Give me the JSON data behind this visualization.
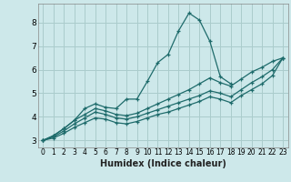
{
  "xlabel": "Humidex (Indice chaleur)",
  "bg_color": "#cde8ea",
  "grid_color": "#aacccc",
  "line_color": "#1e6b6b",
  "xlim": [
    -0.5,
    23.5
  ],
  "ylim": [
    2.7,
    8.8
  ],
  "yticks": [
    3,
    4,
    5,
    6,
    7,
    8
  ],
  "xtick_labels": [
    "0",
    "1",
    "2",
    "3",
    "4",
    "5",
    "6",
    "7",
    "8",
    "9",
    "10",
    "11",
    "12",
    "13",
    "14",
    "15",
    "16",
    "17",
    "18",
    "19",
    "20",
    "21",
    "22",
    "23"
  ],
  "xtick_positions": [
    0,
    1,
    2,
    3,
    4,
    5,
    6,
    7,
    8,
    9,
    10,
    11,
    12,
    13,
    14,
    15,
    16,
    17,
    18,
    19,
    20,
    21,
    22,
    23
  ],
  "lines": [
    {
      "x": [
        0,
        1,
        2,
        3,
        4,
        5,
        6,
        7,
        8,
        9,
        10,
        11,
        12,
        13,
        14,
        15,
        16,
        17,
        18
      ],
      "y": [
        3.0,
        3.2,
        3.5,
        3.85,
        4.35,
        4.55,
        4.4,
        4.35,
        4.75,
        4.75,
        5.5,
        6.3,
        6.65,
        7.65,
        8.4,
        8.1,
        7.2,
        5.7,
        5.4
      ]
    },
    {
      "x": [
        0,
        1,
        2,
        3,
        4,
        5,
        6,
        7,
        8,
        9,
        10,
        11,
        12,
        13,
        14,
        15,
        16,
        17,
        18,
        19,
        20,
        21,
        22,
        23
      ],
      "y": [
        3.0,
        3.2,
        3.5,
        3.85,
        4.1,
        4.35,
        4.25,
        4.1,
        4.05,
        4.15,
        4.35,
        4.55,
        4.75,
        4.95,
        5.15,
        5.4,
        5.65,
        5.45,
        5.3,
        5.6,
        5.9,
        6.1,
        6.35,
        6.5
      ]
    },
    {
      "x": [
        0,
        1,
        2,
        3,
        4,
        5,
        6,
        7,
        8,
        9,
        10,
        11,
        12,
        13,
        14,
        15,
        16,
        17,
        18,
        19,
        20,
        21,
        22,
        23
      ],
      "y": [
        3.0,
        3.15,
        3.4,
        3.7,
        3.95,
        4.2,
        4.1,
        3.95,
        3.9,
        4.0,
        4.15,
        4.3,
        4.45,
        4.6,
        4.75,
        4.9,
        5.1,
        5.0,
        4.85,
        5.15,
        5.45,
        5.7,
        6.0,
        6.5
      ]
    },
    {
      "x": [
        0,
        1,
        2,
        3,
        4,
        5,
        6,
        7,
        8,
        9,
        10,
        11,
        12,
        13,
        14,
        15,
        16,
        17,
        18,
        19,
        20,
        21,
        22,
        23
      ],
      "y": [
        3.0,
        3.1,
        3.3,
        3.55,
        3.75,
        3.95,
        3.9,
        3.75,
        3.7,
        3.8,
        3.95,
        4.1,
        4.2,
        4.35,
        4.5,
        4.65,
        4.85,
        4.75,
        4.6,
        4.9,
        5.15,
        5.4,
        5.75,
        6.5
      ]
    }
  ]
}
